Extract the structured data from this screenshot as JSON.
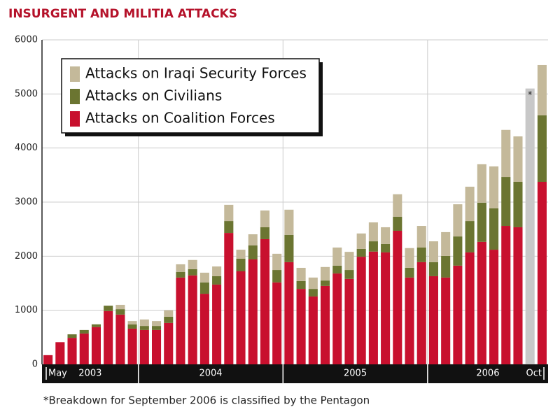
{
  "chart_data": {
    "type": "stacked_bar",
    "title": "INSURGENT AND MILITIA ATTACKS",
    "footnote": "*Breakdown for September 2006 is classified by the Pentagon",
    "categories": [
      "May",
      null,
      null,
      null,
      null,
      null,
      null,
      null,
      null,
      null,
      null,
      null,
      null,
      null,
      null,
      null,
      null,
      null,
      null,
      null,
      null,
      null,
      null,
      null,
      null,
      null,
      null,
      null,
      null,
      null,
      null,
      null,
      null,
      null,
      null,
      null,
      null,
      null,
      null,
      null,
      null,
      "Oct"
    ],
    "x_groups": [
      {
        "label": "2003",
        "start": 0,
        "end": 7
      },
      {
        "label": "2004",
        "start": 8,
        "end": 19
      },
      {
        "label": "2005",
        "start": 20,
        "end": 31
      },
      {
        "label": "2006",
        "start": 32,
        "end": 41
      }
    ],
    "series": [
      {
        "name": "Attacks on Coalition Forces",
        "color": "#c8102e",
        "values": [
          170,
          410,
          490,
          570,
          690,
          985,
          920,
          660,
          635,
          635,
          765,
          1605,
          1645,
          1305,
          1475,
          2430,
          1720,
          1940,
          2315,
          1515,
          1890,
          1395,
          1255,
          1450,
          1680,
          1580,
          1990,
          2085,
          2070,
          2470,
          1605,
          1890,
          1630,
          1605,
          1825,
          2070,
          2265,
          2120,
          2560,
          2535,
          null,
          3375
        ]
      },
      {
        "name": "Attacks on Civilians",
        "color": "#6b7531",
        "values": [
          0,
          0,
          65,
          65,
          50,
          100,
          100,
          80,
          75,
          75,
          115,
          105,
          115,
          210,
          155,
          220,
          235,
          260,
          220,
          230,
          505,
          145,
          140,
          100,
          145,
          165,
          145,
          190,
          155,
          260,
          180,
          270,
          260,
          400,
          540,
          580,
          725,
          765,
          905,
          840,
          null,
          1230
        ]
      },
      {
        "name": "Attacks on Iraqi Security Forces",
        "color": "#c4b99a",
        "values": [
          0,
          0,
          0,
          0,
          0,
          0,
          80,
          60,
          120,
          90,
          120,
          140,
          170,
          180,
          180,
          300,
          165,
          205,
          310,
          300,
          465,
          245,
          210,
          250,
          335,
          335,
          285,
          350,
          310,
          415,
          365,
          400,
          385,
          440,
          595,
          635,
          710,
          775,
          870,
          840,
          null,
          930
        ]
      }
    ],
    "classified": {
      "label": "*",
      "color": "#c8c8c8",
      "values": [
        null,
        null,
        null,
        null,
        null,
        null,
        null,
        null,
        null,
        null,
        null,
        null,
        null,
        null,
        null,
        null,
        null,
        null,
        null,
        null,
        null,
        null,
        null,
        null,
        null,
        null,
        null,
        null,
        null,
        null,
        null,
        null,
        null,
        null,
        null,
        null,
        null,
        null,
        null,
        null,
        5100,
        null
      ]
    },
    "ylim": [
      0,
      6000
    ],
    "yticks": [
      0,
      1000,
      2000,
      3000,
      4000,
      5000,
      6000
    ],
    "grid": true,
    "legend": "top-left"
  }
}
